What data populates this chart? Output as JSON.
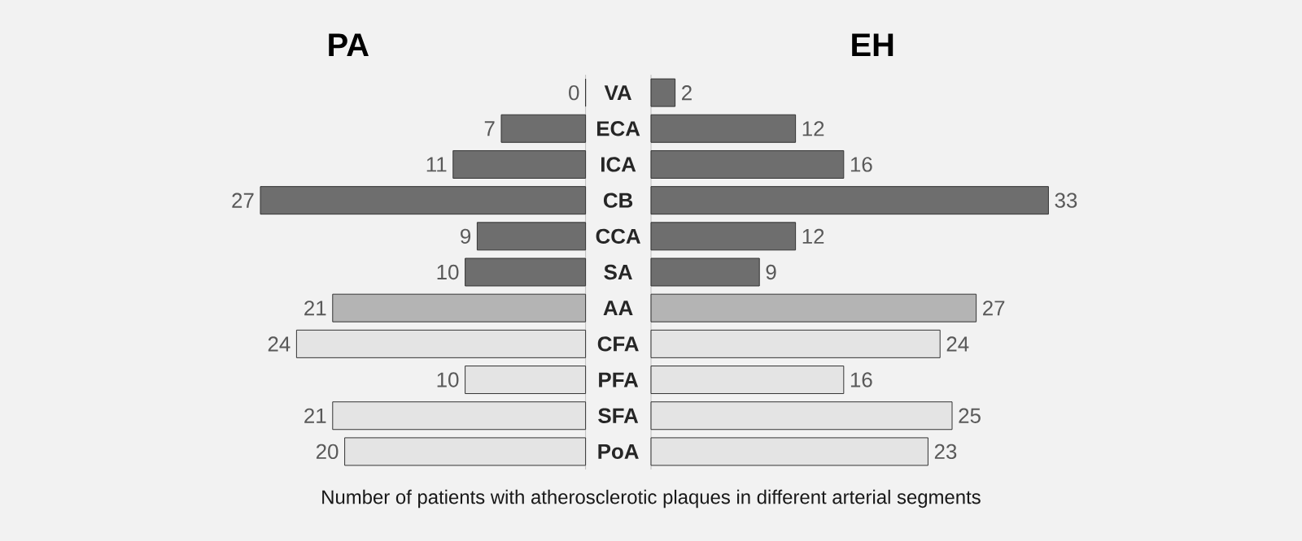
{
  "chart_data": [
    {
      "type": "bar",
      "orientation": "horizontal",
      "title": "PA",
      "tick_labels": "y",
      "data_labels": true,
      "categories": [
        "VA",
        "ECA",
        "ICA",
        "CB",
        "CCA",
        "SA",
        "AA",
        "CFA",
        "PFA",
        "SFA",
        "PoA"
      ],
      "values": [
        0,
        7,
        11,
        27,
        9,
        10,
        21,
        24,
        10,
        21,
        20
      ],
      "colors": [
        "#6e6e6e",
        "#6e6e6e",
        "#6e6e6e",
        "#6e6e6e",
        "#6e6e6e",
        "#6e6e6e",
        "#b4b4b4",
        "#e4e4e4",
        "#e4e4e4",
        "#e4e4e4",
        "#e4e4e4"
      ],
      "xlim": [
        27,
        0
      ],
      "annotations": [
        "Number of patients with atherosclerotic plaques in different arterial segments"
      ]
    },
    {
      "type": "bar",
      "orientation": "horizontal",
      "title": "EH",
      "tick_labels": false,
      "data_labels": true,
      "values": [
        2,
        12,
        16,
        33,
        12,
        9,
        27,
        24,
        16,
        25,
        23
      ],
      "colors": [
        "#6e6e6e",
        "#6e6e6e",
        "#6e6e6e",
        "#6e6e6e",
        "#6e6e6e",
        "#6e6e6e",
        "#b4b4b4",
        "#e4e4e4",
        "#e4e4e4",
        "#e4e4e4",
        "#e4e4e4"
      ],
      "xlim": [
        0,
        33
      ]
    }
  ]
}
